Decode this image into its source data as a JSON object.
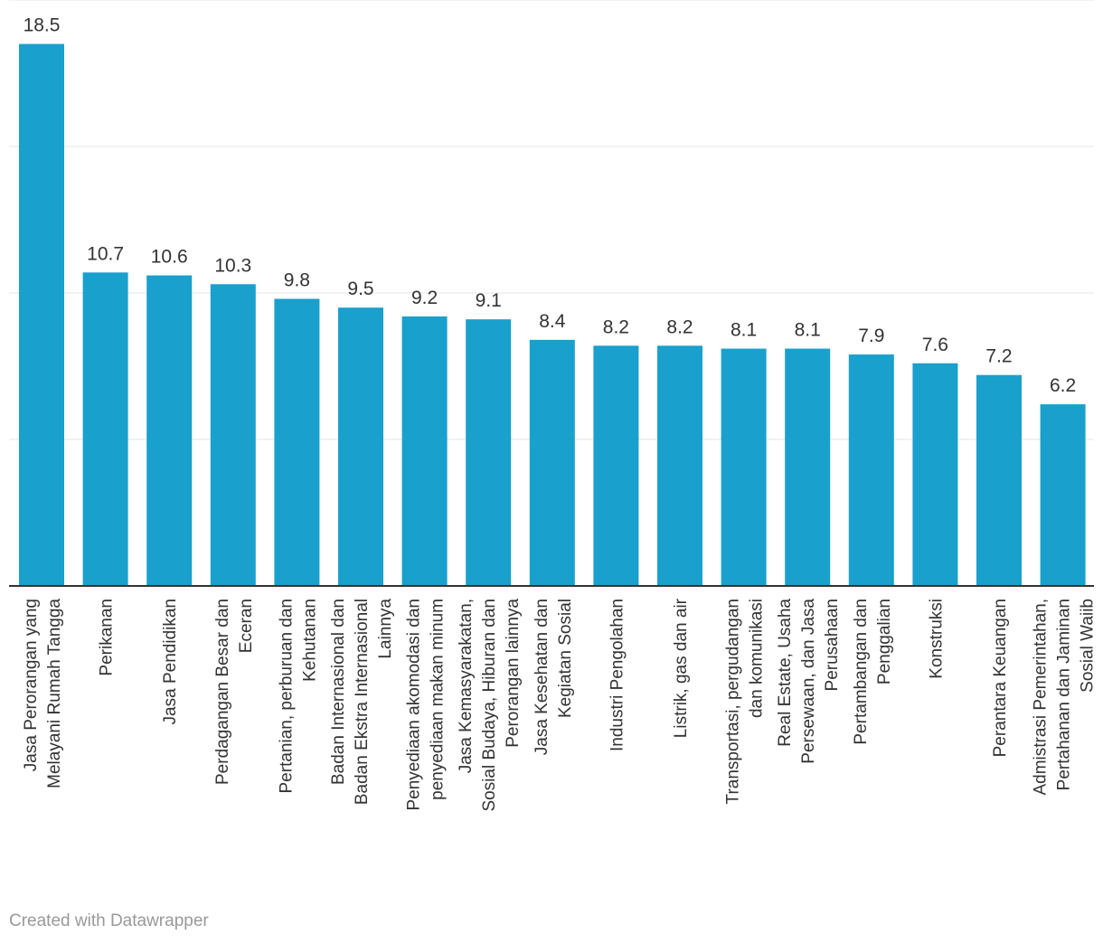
{
  "chart_data": {
    "type": "bar",
    "categories": [
      [
        "Jasa Perorangan yang",
        "Melayani Rumah Tangga"
      ],
      [
        "Perikanan"
      ],
      [
        "Jasa Pendidikan"
      ],
      [
        "Perdagangan Besar dan",
        "Eceran"
      ],
      [
        "Pertanian, perburuan dan",
        "Kehutanan"
      ],
      [
        "Badan Internasional dan",
        "Badan Ekstra Internasional",
        "Lainnya"
      ],
      [
        "Penyediaan akomodasi dan",
        "penyediaan makan minum"
      ],
      [
        "Jasa Kemasyarakatan,",
        "Sosial Budaya, Hiburan dan",
        "Perorangan lainnya"
      ],
      [
        "Jasa Kesehatan dan",
        "Kegiatan Sosial"
      ],
      [
        "Industri Pengolahan"
      ],
      [
        "Listrik, gas dan air"
      ],
      [
        "Transportasi, pergudangan",
        "dan komunikasi"
      ],
      [
        "Real Estate, Usaha",
        "Persewaan, dan Jasa",
        "Perusahaan"
      ],
      [
        "Pertambangan dan",
        "Penggalian"
      ],
      [
        "Konstruksi"
      ],
      [
        "Perantara Keuangan"
      ],
      [
        "Admistrasi Pemerintahan,",
        "Pertahanan dan Jaminan",
        "Sosial Waiib"
      ]
    ],
    "values": [
      18.5,
      10.7,
      10.6,
      10.3,
      9.8,
      9.5,
      9.2,
      9.1,
      8.4,
      8.2,
      8.2,
      8.1,
      8.1,
      7.9,
      7.6,
      7.2,
      6.2
    ],
    "value_labels": [
      "18.5",
      "10.7",
      "10.6",
      "10.3",
      "9.8",
      "9.5",
      "9.2",
      "9.1",
      "8.4",
      "8.2",
      "8.2",
      "8.1",
      "8.1",
      "7.9",
      "7.6",
      "7.2",
      "6.2"
    ],
    "ylim": [
      0,
      20
    ],
    "gridlines": [
      5,
      10,
      15,
      20
    ],
    "grid": true,
    "bar_color": "#1aa0cd",
    "gridline_color": "#e5e5e5",
    "axis_color": "#333333"
  },
  "footer": {
    "credit": "Created with Datawrapper"
  }
}
